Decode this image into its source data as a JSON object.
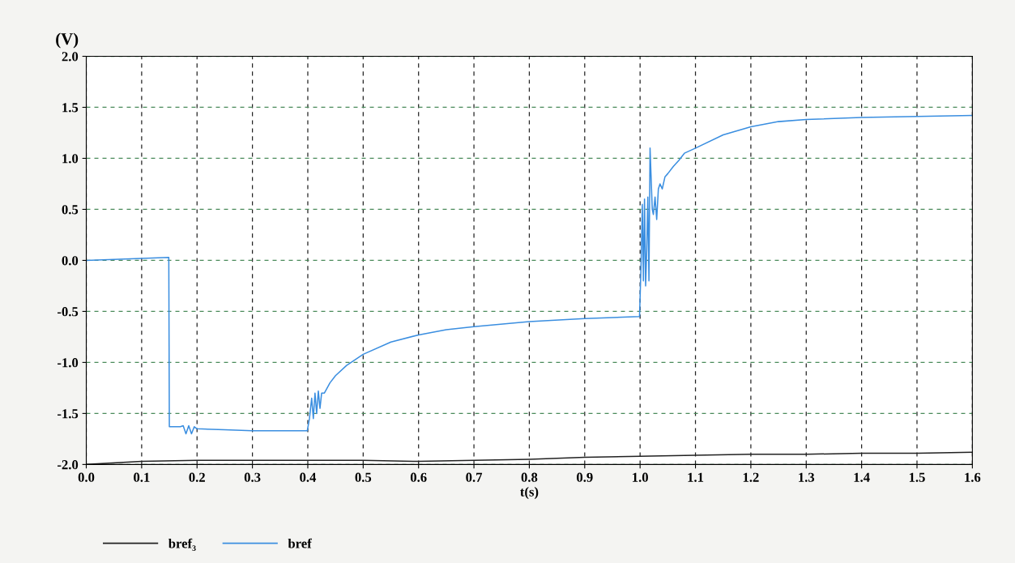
{
  "chart_data": {
    "type": "line",
    "xlabel": "t(s)",
    "ylabel": "(V)",
    "xlim": [
      0,
      1.6
    ],
    "ylim": [
      -2.0,
      2.0
    ],
    "xticks": [
      {
        "value": 0,
        "label": "0.0"
      },
      0.1,
      0.2,
      0.3,
      0.4,
      0.5,
      0.6,
      0.7,
      0.8,
      0.9,
      {
        "value": 1,
        "label": "1.0"
      },
      1.1,
      1.2,
      1.3,
      1.4,
      1.5,
      1.6
    ],
    "yticks": [
      {
        "value": -2,
        "label": "-2.0"
      },
      -1.5,
      {
        "value": -1,
        "label": "-1.0"
      },
      -0.5,
      {
        "value": 0,
        "label": "0.0"
      },
      0.5,
      {
        "value": 1,
        "label": "1.0"
      },
      1.5,
      {
        "value": 2,
        "label": "2.0"
      }
    ],
    "grid": true,
    "legend": "bottom left",
    "line_style": "solid",
    "marker": "none",
    "series": [
      {
        "name": "bref₃",
        "color": "#222222",
        "x": [
          0,
          0.1,
          0.2,
          0.3,
          0.4,
          0.5,
          0.6,
          0.7,
          0.8,
          0.9,
          1.0,
          1.1,
          1.2,
          1.3,
          1.4,
          1.5,
          1.6
        ],
        "values": [
          -2.0,
          -1.97,
          -1.96,
          -1.96,
          -1.96,
          -1.96,
          -1.97,
          -1.96,
          -1.95,
          -1.93,
          -1.92,
          -1.91,
          -1.9,
          -1.9,
          -1.89,
          -1.89,
          -1.88
        ]
      },
      {
        "name": "bref",
        "color": "#3a8ee0",
        "x": [
          0,
          0.1,
          0.149,
          0.15,
          0.17,
          0.175,
          0.18,
          0.185,
          0.19,
          0.195,
          0.2,
          0.25,
          0.3,
          0.35,
          0.399,
          0.403,
          0.407,
          0.41,
          0.413,
          0.416,
          0.419,
          0.422,
          0.425,
          0.43,
          0.44,
          0.45,
          0.47,
          0.5,
          0.55,
          0.6,
          0.65,
          0.7,
          0.8,
          0.9,
          0.999,
          1.002,
          1.004,
          1.006,
          1.008,
          1.01,
          1.012,
          1.014,
          1.016,
          1.018,
          1.02,
          1.022,
          1.024,
          1.027,
          1.03,
          1.033,
          1.036,
          1.04,
          1.045,
          1.05,
          1.06,
          1.07,
          1.08,
          1.1,
          1.15,
          1.2,
          1.25,
          1.3,
          1.4,
          1.5,
          1.6
        ],
        "values": [
          0.0,
          0.02,
          0.03,
          -1.63,
          -1.63,
          -1.62,
          -1.7,
          -1.62,
          -1.7,
          -1.63,
          -1.65,
          -1.66,
          -1.67,
          -1.67,
          -1.67,
          -1.55,
          -1.35,
          -1.55,
          -1.3,
          -1.5,
          -1.28,
          -1.45,
          -1.3,
          -1.3,
          -1.2,
          -1.13,
          -1.03,
          -0.92,
          -0.8,
          -0.73,
          -0.68,
          -0.65,
          -0.6,
          -0.57,
          -0.55,
          0.0,
          0.55,
          -0.2,
          0.6,
          -0.25,
          0.1,
          0.62,
          -0.2,
          1.1,
          0.8,
          0.5,
          0.45,
          0.62,
          0.4,
          0.7,
          0.75,
          0.7,
          0.82,
          0.85,
          0.92,
          0.98,
          1.05,
          1.1,
          1.23,
          1.31,
          1.36,
          1.38,
          1.4,
          1.41,
          1.42
        ]
      }
    ]
  }
}
